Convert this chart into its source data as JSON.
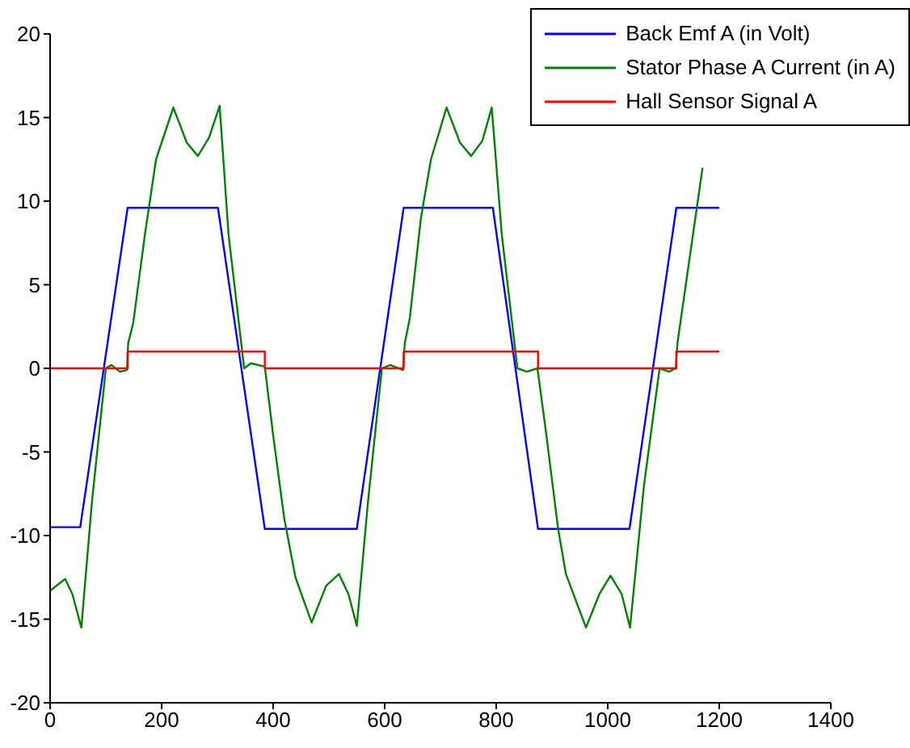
{
  "chart_data": {
    "type": "line",
    "xlim": [
      0,
      1400
    ],
    "xticks": [
      0,
      200,
      400,
      600,
      800,
      1000,
      1200,
      1400
    ],
    "ylim": [
      -20,
      20
    ],
    "yticks": [
      -20,
      -15,
      -10,
      -5,
      0,
      5,
      10,
      15,
      20
    ],
    "legend": "top right",
    "series": [
      {
        "name": "Back Emf A (in Volt)",
        "color": "#0000ff",
        "x": [
          0,
          54,
          139,
          301,
          385,
          550,
          634,
          794,
          875,
          1039,
          1123,
          1200
        ],
        "values": [
          -9.5,
          -9.5,
          9.6,
          9.6,
          -9.6,
          -9.6,
          9.6,
          9.6,
          -9.6,
          -9.6,
          9.6,
          9.6
        ]
      },
      {
        "name": "Stator Phase A Current (in A)",
        "color": "#008000",
        "x": [
          0,
          27,
          40,
          56,
          75,
          100,
          110,
          125,
          138,
          140,
          149,
          170,
          190,
          221,
          245,
          265,
          285,
          304,
          320,
          348,
          360,
          385,
          400,
          420,
          440,
          469,
          495,
          518,
          535,
          550,
          570,
          595,
          610,
          633,
          636,
          645,
          665,
          683,
          711,
          735,
          755,
          775,
          792,
          810,
          838,
          855,
          874,
          890,
          911,
          925,
          961,
          985,
          1005,
          1025,
          1040,
          1065,
          1093,
          1110,
          1122,
          1125,
          1140,
          1170
        ],
        "values": [
          -13.3,
          -12.6,
          -13.5,
          -15.5,
          -8,
          0,
          0.2,
          -0.2,
          -0.1,
          1.5,
          2.7,
          8,
          12.5,
          15.6,
          13.5,
          12.7,
          13.8,
          15.7,
          8,
          0,
          0.3,
          0.1,
          -4,
          -9,
          -12.5,
          -15.2,
          -13,
          -12.3,
          -13.5,
          -15.4,
          -8,
          0,
          0.2,
          -0.1,
          1.5,
          3,
          9,
          12.5,
          15.6,
          13.5,
          12.7,
          13.6,
          15.6,
          8,
          0,
          -0.2,
          0,
          -4,
          -9.6,
          -12.3,
          -15.5,
          -13.5,
          -12.4,
          -13.5,
          -15.5,
          -7,
          0,
          -0.2,
          0,
          1.5,
          5,
          12
        ]
      },
      {
        "name": "Hall Sensor Signal A",
        "type": "step",
        "color": "#ff0000",
        "x": [
          0,
          139,
          385,
          634,
          875,
          1123,
          1200
        ],
        "values": [
          0,
          1,
          0,
          1,
          0,
          1,
          1
        ]
      }
    ]
  }
}
